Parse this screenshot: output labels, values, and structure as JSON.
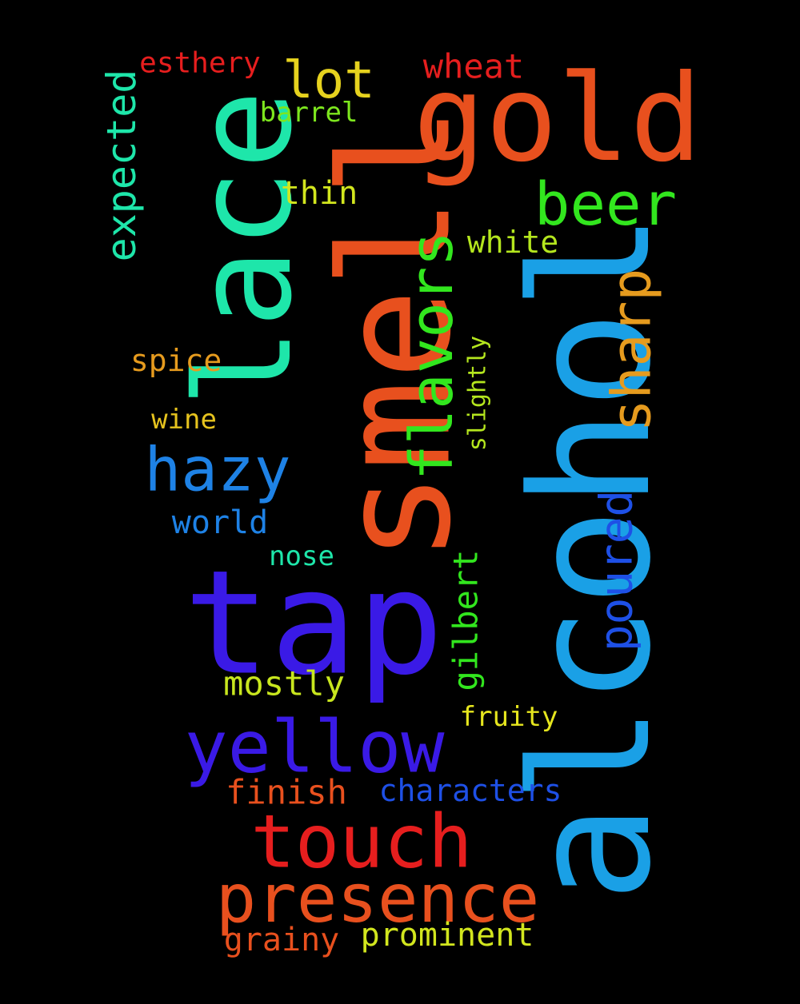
{
  "background_color": "#000000",
  "words": [
    {
      "id": "smell",
      "text": "smell",
      "color": "#E8501E"
    },
    {
      "id": "alcohol",
      "text": "alcohol",
      "color": "#1AA0E6"
    },
    {
      "id": "lace",
      "text": "lace",
      "color": "#1EE6AA"
    },
    {
      "id": "tap",
      "text": "tap",
      "color": "#3A1AE6"
    },
    {
      "id": "gold",
      "text": "gold",
      "color": "#E8501E"
    },
    {
      "id": "yellow",
      "text": "yellow",
      "color": "#3A1AE6"
    },
    {
      "id": "touch",
      "text": "touch",
      "color": "#E61E1E"
    },
    {
      "id": "presence",
      "text": "presence",
      "color": "#E8501E"
    },
    {
      "id": "flavors",
      "text": "flavors",
      "color": "#32E61E"
    },
    {
      "id": "beer",
      "text": "beer",
      "color": "#32E61E"
    },
    {
      "id": "hazy",
      "text": "hazy",
      "color": "#1E82E6"
    },
    {
      "id": "sharp",
      "text": "sharp",
      "color": "#E69B1E"
    },
    {
      "id": "lot",
      "text": "lot",
      "color": "#E6D21E"
    },
    {
      "id": "poured",
      "text": "poured",
      "color": "#1E50E6"
    },
    {
      "id": "expected",
      "text": "expected",
      "color": "#1EE6AA"
    },
    {
      "id": "wheat",
      "text": "wheat",
      "color": "#E61E1E"
    },
    {
      "id": "esthery",
      "text": "esthery",
      "color": "#E61E1E"
    },
    {
      "id": "barrel",
      "text": "barrel",
      "color": "#7DE61E"
    },
    {
      "id": "thin",
      "text": "thin",
      "color": "#D2E61E"
    },
    {
      "id": "white",
      "text": "white",
      "color": "#B4E61E"
    },
    {
      "id": "spice",
      "text": "spice",
      "color": "#E69B1E"
    },
    {
      "id": "wine",
      "text": "wine",
      "color": "#E6C31E"
    },
    {
      "id": "slightly",
      "text": "slightly",
      "color": "#B4E61E"
    },
    {
      "id": "world",
      "text": "world",
      "color": "#1E82E6"
    },
    {
      "id": "nose",
      "text": "nose",
      "color": "#1EE6AA"
    },
    {
      "id": "gilbert",
      "text": "gilbert",
      "color": "#32E61E"
    },
    {
      "id": "mostly",
      "text": "mostly",
      "color": "#C8E61E"
    },
    {
      "id": "fruity",
      "text": "fruity",
      "color": "#E6E61E"
    },
    {
      "id": "finish",
      "text": "finish",
      "color": "#E8501E"
    },
    {
      "id": "characters",
      "text": "characters",
      "color": "#1E50E6"
    },
    {
      "id": "grainy",
      "text": "grainy",
      "color": "#E8501E"
    },
    {
      "id": "prominent",
      "text": "prominent",
      "color": "#D2E61E"
    }
  ]
}
